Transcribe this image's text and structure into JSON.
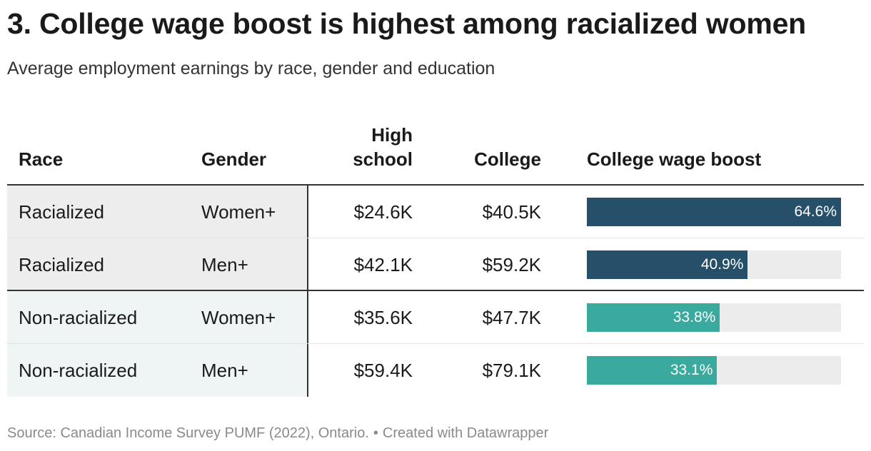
{
  "title": "3. College wage boost is highest among racialized women",
  "subtitle": "Average employment earnings by race, gender and education",
  "columns": {
    "race": "Race",
    "gender": "Gender",
    "high_school_line1": "High",
    "high_school_line2": "school",
    "college": "College",
    "boost": "College wage boost"
  },
  "footer": {
    "source": "Source: Canadian Income Survey PUMF (2022), Ontario.",
    "separator": "•",
    "credit": "Created with Datawrapper"
  },
  "colors": {
    "racialized": "#26506a",
    "non_racialized": "#3aaa9e",
    "track": "#ececec"
  },
  "chart_data": {
    "type": "table",
    "title": "3. College wage boost is highest among racialized women",
    "columns": [
      "Race",
      "Gender",
      "High school",
      "College",
      "College wage boost"
    ],
    "bar_max": 64.6,
    "rows": [
      {
        "race": "Racialized",
        "gender": "Women+",
        "high_school": "$24.6K",
        "college": "$40.5K",
        "boost": 64.6,
        "boost_label": "64.6%",
        "group": "racialized"
      },
      {
        "race": "Racialized",
        "gender": "Men+",
        "high_school": "$42.1K",
        "college": "$59.2K",
        "boost": 40.9,
        "boost_label": "40.9%",
        "group": "racialized"
      },
      {
        "race": "Non-racialized",
        "gender": "Women+",
        "high_school": "$35.6K",
        "college": "$47.7K",
        "boost": 33.8,
        "boost_label": "33.8%",
        "group": "non_racialized"
      },
      {
        "race": "Non-racialized",
        "gender": "Men+",
        "high_school": "$59.4K",
        "college": "$79.1K",
        "boost": 33.1,
        "boost_label": "33.1%",
        "group": "non_racialized"
      }
    ]
  }
}
